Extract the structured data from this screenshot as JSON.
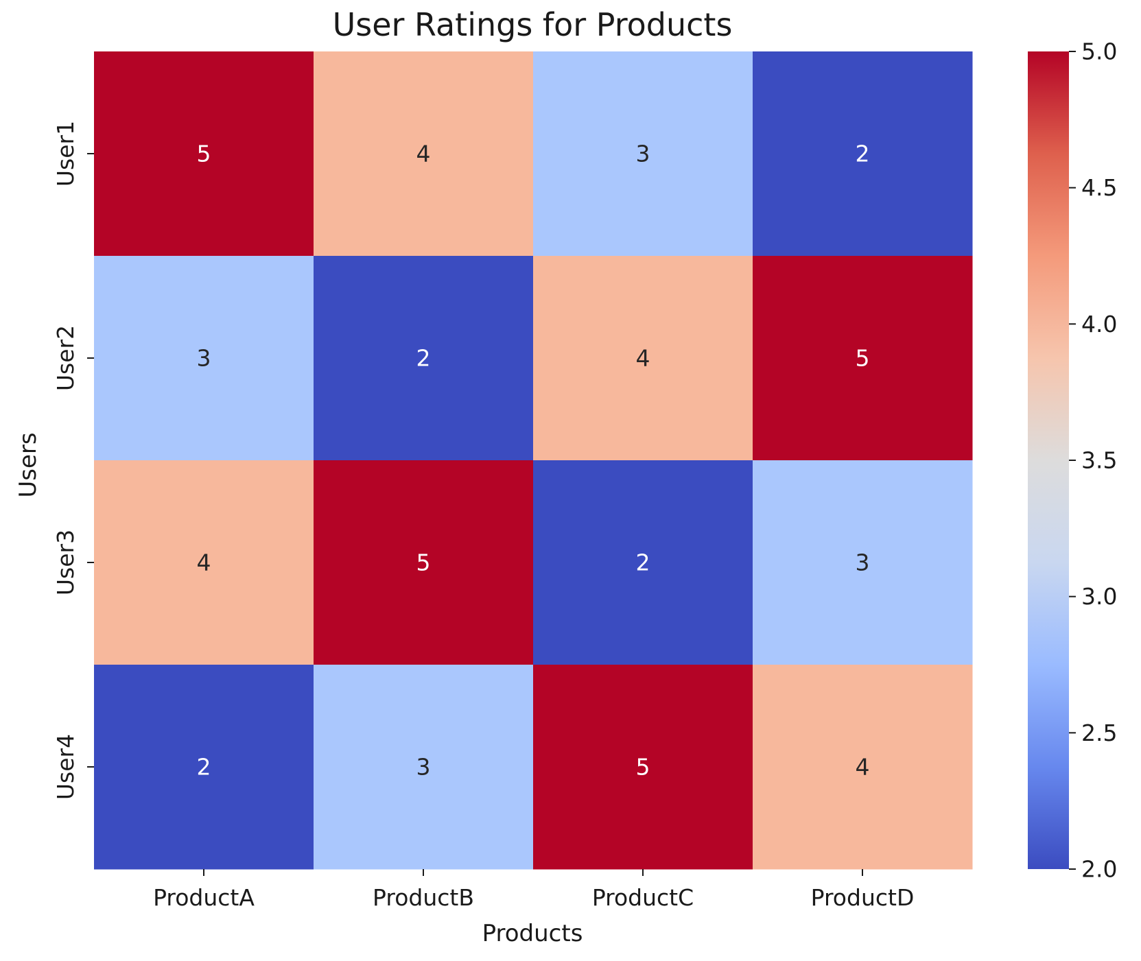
{
  "chart_data": {
    "type": "heatmap",
    "title": "User Ratings for Products",
    "xlabel": "Products",
    "ylabel": "Users",
    "x_categories": [
      "ProductA",
      "ProductB",
      "ProductC",
      "ProductD"
    ],
    "y_categories": [
      "User1",
      "User2",
      "User3",
      "User4"
    ],
    "values": [
      [
        5,
        4,
        3,
        2
      ],
      [
        3,
        2,
        4,
        5
      ],
      [
        4,
        5,
        2,
        3
      ],
      [
        2,
        3,
        5,
        4
      ]
    ],
    "annotations": true,
    "colormap": "coolwarm",
    "colorbar": {
      "range": [
        2.0,
        5.0
      ],
      "ticks": [
        "2.0",
        "2.5",
        "3.0",
        "3.5",
        "4.0",
        "4.5",
        "5.0"
      ]
    },
    "colors": {
      "5": "#b40426",
      "4": "#f7b89c",
      "3": "#aac7fd",
      "2": "#3b4cc0",
      "colorbar_stops": [
        "#3b4cc0",
        "#6788ee",
        "#9abbff",
        "#c9d7f0",
        "#dddcdc",
        "#f6c5ad",
        "#f49a7b",
        "#de604d",
        "#b40426"
      ]
    }
  }
}
